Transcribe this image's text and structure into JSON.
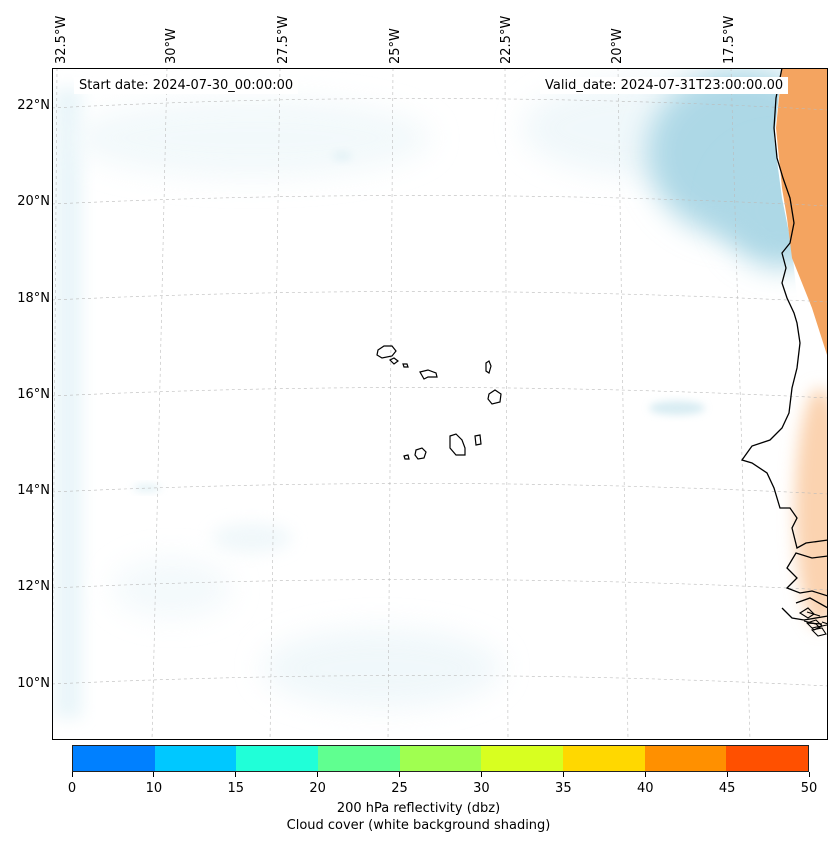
{
  "map": {
    "start_date": "Start date: 2024-07-30_00:00:00",
    "valid_date": "Valid_date: 2024-07-31T23:00:00.00",
    "longitude_labels": [
      "32.5°W",
      "30°W",
      "27.5°W",
      "25°W",
      "22.5°W",
      "20°W",
      "17.5°W"
    ],
    "latitude_labels": [
      "22°N",
      "20°N",
      "18°N",
      "16°N",
      "14°N",
      "12°N",
      "10°N"
    ],
    "colors": {
      "land_high": "#f4a460",
      "ocean_cloud": "#add8e6",
      "coastline": "#000000"
    }
  },
  "colorbar": {
    "ticks": [
      "0",
      "10",
      "15",
      "20",
      "25",
      "30",
      "35",
      "40",
      "45",
      "50"
    ],
    "colors": [
      "#0080ff",
      "#00c8ff",
      "#20ffd8",
      "#60ff90",
      "#a0ff50",
      "#d8ff20",
      "#ffd800",
      "#ff9000",
      "#ff5000"
    ],
    "label_line1": "200 hPa reflectivity (dbz)",
    "label_line2": "Cloud cover (white background shading)"
  }
}
